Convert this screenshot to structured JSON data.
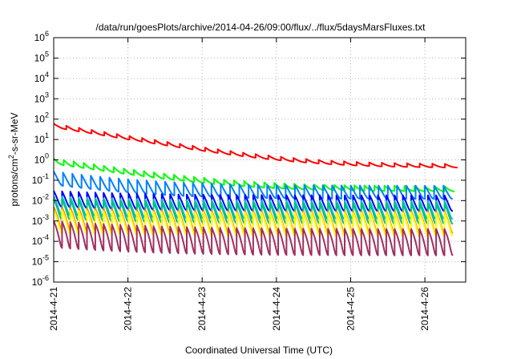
{
  "chart_data": {
    "type": "line",
    "title": "/data/run/goesPlots/archive/2014-04-26/09:00/flux/../flux/5daysMarsFluxes.txt",
    "xlabel": "Coordinated Universal Time (UTC)",
    "ylabel": {
      "prefix": "protons/cm",
      "sup": "2",
      "suffix": "-s-sr-MeV"
    },
    "y_scale": "log",
    "ylim": [
      1e-06,
      1000000.0
    ],
    "y_ticks": [
      {
        "exp": "-6",
        "value": 1e-06
      },
      {
        "exp": "-5",
        "value": 1e-05
      },
      {
        "exp": "-4",
        "value": 0.0001
      },
      {
        "exp": "-3",
        "value": 0.001
      },
      {
        "exp": "-2",
        "value": 0.01
      },
      {
        "exp": "-1",
        "value": 0.1
      },
      {
        "exp": "0",
        "value": 1
      },
      {
        "exp": "1",
        "value": 10.0
      },
      {
        "exp": "2",
        "value": 100.0
      },
      {
        "exp": "3",
        "value": 1000.0
      },
      {
        "exp": "4",
        "value": 10000.0
      },
      {
        "exp": "5",
        "value": 100000.0
      },
      {
        "exp": "6",
        "value": 1000000.0
      }
    ],
    "x_range_days": [
      0,
      5.55
    ],
    "x_ticks": [
      {
        "label": "2014-4-21",
        "day": 0
      },
      {
        "label": "2014-4-22",
        "day": 1
      },
      {
        "label": "2014-4-23",
        "day": 2
      },
      {
        "label": "2014-4-24",
        "day": 3
      },
      {
        "label": "2014-4-25",
        "day": 4
      },
      {
        "label": "2014-4-26",
        "day": 5
      }
    ],
    "grid": true,
    "legend": "none",
    "series": [
      {
        "color": "#ff0000",
        "sawtooth": {
          "start": 40,
          "floor": 0.4,
          "decay": 1.4,
          "amp": 1.5,
          "cycles": 32,
          "period": 0.17
        }
      },
      {
        "color": "#00ff00",
        "sawtooth": {
          "start": 0.65,
          "floor": 0.028,
          "decay": 1.3,
          "amp": 1.8,
          "cycles": 40,
          "period": 0.135
        }
      },
      {
        "color": "#0080ff",
        "sawtooth": {
          "start": 0.06,
          "floor": 0.012,
          "decay": 1.3,
          "amp": 4.5,
          "cycles": 43,
          "period": 0.125
        }
      },
      {
        "color": "#0000ff",
        "sawtooth": {
          "start": 0.005,
          "floor": 0.003,
          "decay": 1.0,
          "amp": 6,
          "cycles": 48,
          "period": 0.112
        }
      },
      {
        "color": "#00c0c0",
        "sawtooth": {
          "start": 0.002,
          "floor": 0.0012,
          "decay": 1.0,
          "amp": 8,
          "cycles": 48,
          "period": 0.112
        }
      },
      {
        "color": "#00c080",
        "sawtooth": {
          "start": 0.0012,
          "floor": 0.0007,
          "decay": 1.0,
          "amp": 10,
          "cycles": 48,
          "period": 0.112
        }
      },
      {
        "color": "#ff8000",
        "sawtooth": {
          "start": 0.0004,
          "floor": 0.00025,
          "decay": 1.0,
          "amp": 12,
          "cycles": 48,
          "period": 0.112
        }
      },
      {
        "color": "#ffff00",
        "sawtooth": {
          "start": 0.00025,
          "floor": 0.00018,
          "decay": 1.0,
          "amp": 14,
          "cycles": 48,
          "period": 0.112
        }
      },
      {
        "color": "#a03060",
        "sawtooth": {
          "start": 5e-05,
          "floor": 2e-05,
          "decay": 1.0,
          "amp": 20,
          "cycles": 48,
          "period": 0.112
        }
      }
    ]
  }
}
